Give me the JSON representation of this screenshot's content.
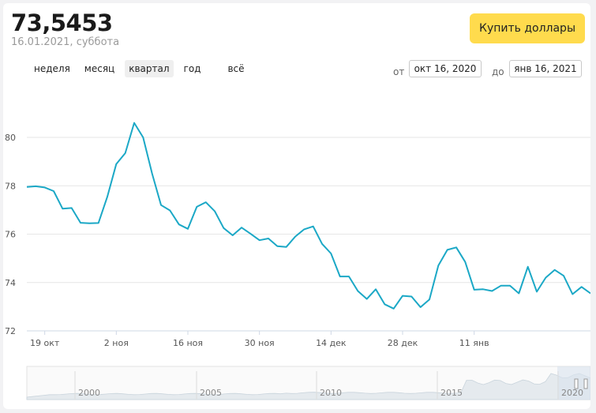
{
  "header": {
    "price": "73,5453",
    "date": "16.01.2021, суббота",
    "buy_label": "Купить доллары"
  },
  "periods": [
    {
      "label": "неделя",
      "active": false
    },
    {
      "label": "месяц",
      "active": false
    },
    {
      "label": "квартал",
      "active": true
    },
    {
      "label": "год",
      "active": false
    },
    {
      "label": "всё",
      "active": false
    }
  ],
  "range": {
    "from_label": "от",
    "from_value": "окт 16, 2020",
    "to_label": "до",
    "to_value": "янв 16, 2021"
  },
  "colors": {
    "line": "#1ba8c6",
    "button": "#ffdb4d",
    "grid": "#e6e6e6"
  },
  "chart_data": {
    "type": "line",
    "title": "",
    "xlabel": "",
    "ylabel": "",
    "ylim": [
      72,
      82
    ],
    "yticks": [
      72,
      74,
      76,
      78,
      80
    ],
    "grid": true,
    "x_tick_labels": [
      {
        "label": "19 окт",
        "index": 2
      },
      {
        "label": "2 ноя",
        "index": 10
      },
      {
        "label": "16 ноя",
        "index": 18
      },
      {
        "label": "30 ноя",
        "index": 26
      },
      {
        "label": "14 дек",
        "index": 34
      },
      {
        "label": "28 дек",
        "index": 42
      },
      {
        "label": "11 янв",
        "index": 50
      }
    ],
    "series": [
      {
        "name": "",
        "values": [
          77.95,
          77.98,
          77.93,
          77.78,
          77.05,
          77.08,
          76.47,
          76.45,
          76.46,
          77.55,
          78.9,
          79.35,
          80.6,
          80.0,
          78.5,
          77.2,
          76.98,
          76.4,
          76.22,
          77.13,
          77.32,
          76.95,
          76.25,
          75.95,
          76.27,
          76.02,
          75.75,
          75.82,
          75.5,
          75.47,
          75.9,
          76.2,
          76.32,
          75.6,
          75.2,
          74.25,
          74.25,
          73.65,
          73.32,
          73.72,
          73.1,
          72.92,
          73.45,
          73.42,
          72.98,
          73.3,
          74.7,
          75.35,
          75.45,
          74.85,
          73.7,
          73.72,
          73.65,
          73.87,
          73.87,
          73.55,
          74.65,
          73.62,
          74.2,
          74.52,
          74.28,
          73.52,
          73.82,
          73.55
        ]
      }
    ]
  },
  "navigator": {
    "year_labels": [
      "2000",
      "2005",
      "2010",
      "2015",
      "2020"
    ]
  }
}
